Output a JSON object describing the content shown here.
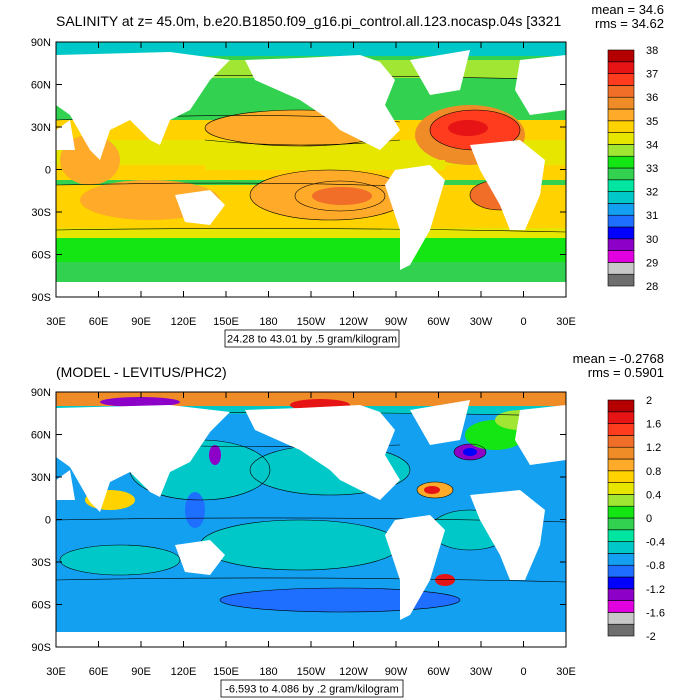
{
  "colors": {
    "top": [
      "#6e6e6e",
      "#c8c8c8",
      "#e000e0",
      "#8c00c8",
      "#0000ff",
      "#1e6eff",
      "#14a0f0",
      "#00c8c8",
      "#00e6a0",
      "#32d250",
      "#14e614",
      "#a0e632",
      "#e6e600",
      "#ffd200",
      "#ffaa28",
      "#f08c28",
      "#f06e28",
      "#ff3c1e",
      "#e61414",
      "#b40000"
    ],
    "bottom": [
      "#6e6e6e",
      "#c8c8c8",
      "#e000e0",
      "#8c00c8",
      "#0000ff",
      "#1e6eff",
      "#14a0f0",
      "#00c8c8",
      "#00e6a0",
      "#32d250",
      "#14e614",
      "#a0e632",
      "#e6e600",
      "#ffd200",
      "#ffaa28",
      "#f08c28",
      "#f06e28",
      "#ff3c1e",
      "#e61414",
      "#b40000"
    ]
  },
  "chart_data": [
    {
      "type": "heatmap",
      "title": "SALINITY at z=  45.0m, b.e20.B1850.f09_g16.pi_control.all.123.nocasp.04s [3321",
      "stats_mean": "mean = 34.6",
      "stats_rms": "rms = 34.62",
      "x_ticks": [
        "30E",
        "60E",
        "90E",
        "120E",
        "150E",
        "180",
        "150W",
        "120W",
        "90W",
        "60W",
        "30W",
        "0",
        "30E"
      ],
      "y_ticks": [
        "90N",
        "60N",
        "30N",
        "0",
        "30S",
        "60S",
        "90S"
      ],
      "colorbar_labels": [
        "38",
        "37",
        "36",
        "35",
        "34",
        "33",
        "32",
        "31",
        "30",
        "29",
        "28"
      ],
      "contour_info": "24.28 to 43.01 by .5 gram/kilogram",
      "range": [
        24.28,
        43.01
      ],
      "contour_interval": 0.5,
      "units": "gram/kilogram"
    },
    {
      "type": "heatmap",
      "title": "(MODEL - LEVITUS/PHC2)",
      "stats_mean": "mean = -0.2768",
      "stats_rms": "rms = 0.5901",
      "x_ticks": [
        "30E",
        "60E",
        "90E",
        "120E",
        "150E",
        "180",
        "150W",
        "120W",
        "90W",
        "60W",
        "30W",
        "0",
        "30E"
      ],
      "y_ticks": [
        "90N",
        "60N",
        "30N",
        "0",
        "30S",
        "60S",
        "90S"
      ],
      "colorbar_labels": [
        "2",
        "1.6",
        "1.2",
        "0.8",
        "0.4",
        "0",
        "-0.4",
        "-0.8",
        "-1.2",
        "-1.6",
        "-2"
      ],
      "contour_info": "-6.593 to 4.086 by .2 gram/kilogram",
      "range": [
        -6.593,
        4.086
      ],
      "contour_interval": 0.2,
      "units": "gram/kilogram"
    }
  ]
}
